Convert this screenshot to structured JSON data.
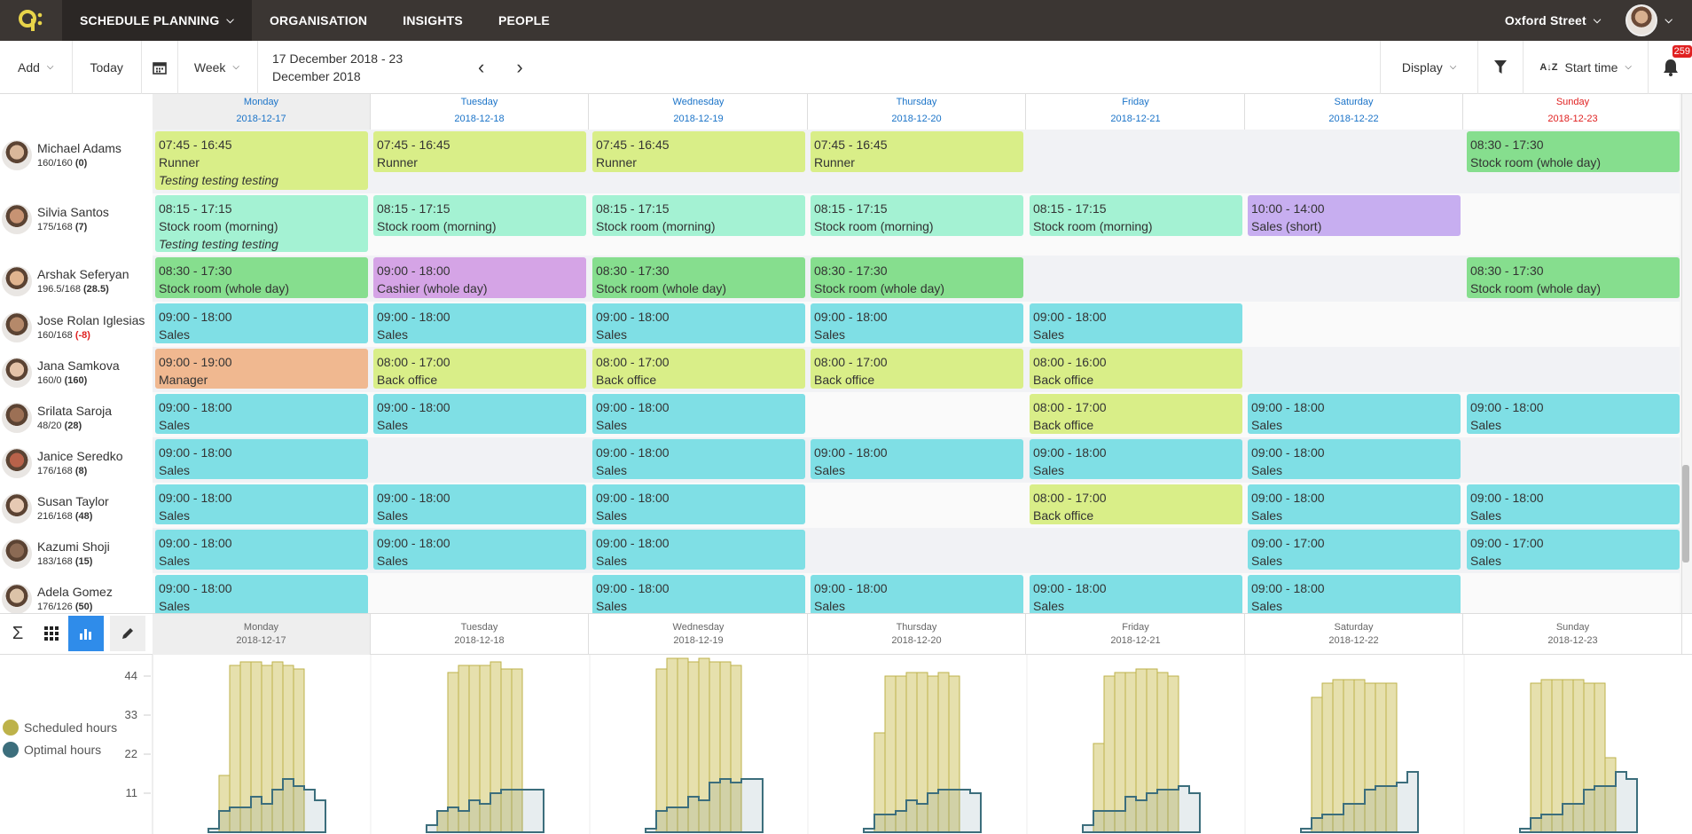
{
  "topnav": {
    "menu": "SCHEDULE PLANNING",
    "tabs": [
      "ORGANISATION",
      "INSIGHTS",
      "PEOPLE"
    ],
    "location": "Oxford Street"
  },
  "toolbar": {
    "add": "Add",
    "today": "Today",
    "view": "Week",
    "date_line1": "17 December 2018 - 23",
    "date_line2": "December 2018",
    "display": "Display",
    "sort": "Start time",
    "notifications": "259"
  },
  "days": [
    {
      "name": "Monday",
      "date": "2018-12-17"
    },
    {
      "name": "Tuesday",
      "date": "2018-12-18"
    },
    {
      "name": "Wednesday",
      "date": "2018-12-19"
    },
    {
      "name": "Thursday",
      "date": "2018-12-20"
    },
    {
      "name": "Friday",
      "date": "2018-12-21"
    },
    {
      "name": "Saturday",
      "date": "2018-12-22"
    },
    {
      "name": "Sunday",
      "date": "2018-12-23"
    }
  ],
  "colors": {
    "lime": "#d9ee88",
    "mint": "#a4f2d3",
    "green": "#86de8e",
    "cyan": "#7fdfe5",
    "violet": "#c7aef0",
    "pink": "#d5a4e6",
    "orange": "#f0b890",
    "accent": "#2f8cea",
    "scheduled": "#bdb24a",
    "optimal": "#3c6e7c"
  },
  "employees": [
    {
      "name": "Michael Adams",
      "hours": "160/160",
      "diff": "(0)",
      "neg": false,
      "shifts": [
        {
          "day": 0,
          "time": "07:45 - 16:45",
          "role": "Runner",
          "note": "Testing testing testing",
          "color": "lime"
        },
        {
          "day": 1,
          "time": "07:45 - 16:45",
          "role": "Runner",
          "color": "lime"
        },
        {
          "day": 2,
          "time": "07:45 - 16:45",
          "role": "Runner",
          "color": "lime"
        },
        {
          "day": 3,
          "time": "07:45 - 16:45",
          "role": "Runner",
          "color": "lime"
        },
        {
          "day": 6,
          "time": "08:30 - 17:30",
          "role": "Stock room (whole day)",
          "color": "green"
        }
      ]
    },
    {
      "name": "Silvia Santos",
      "hours": "175/168",
      "diff": "(7)",
      "neg": false,
      "shifts": [
        {
          "day": 0,
          "time": "08:15 - 17:15",
          "role": "Stock room (morning)",
          "note": "Testing testing testing",
          "color": "mint"
        },
        {
          "day": 1,
          "time": "08:15 - 17:15",
          "role": "Stock room (morning)",
          "color": "mint"
        },
        {
          "day": 2,
          "time": "08:15 - 17:15",
          "role": "Stock room (morning)",
          "color": "mint"
        },
        {
          "day": 3,
          "time": "08:15 - 17:15",
          "role": "Stock room (morning)",
          "color": "mint"
        },
        {
          "day": 4,
          "time": "08:15 - 17:15",
          "role": "Stock room (morning)",
          "color": "mint"
        },
        {
          "day": 5,
          "time": "10:00 - 14:00",
          "role": "Sales (short)",
          "color": "violet"
        }
      ]
    },
    {
      "name": "Arshak Seferyan",
      "hours": "196.5/168",
      "diff": "(28.5)",
      "neg": false,
      "shifts": [
        {
          "day": 0,
          "time": "08:30 - 17:30",
          "role": "Stock room (whole day)",
          "color": "green"
        },
        {
          "day": 1,
          "time": "09:00 - 18:00",
          "role": "Cashier (whole day)",
          "color": "pink"
        },
        {
          "day": 2,
          "time": "08:30 - 17:30",
          "role": "Stock room (whole day)",
          "color": "green"
        },
        {
          "day": 3,
          "time": "08:30 - 17:30",
          "role": "Stock room (whole day)",
          "color": "green"
        },
        {
          "day": 6,
          "time": "08:30 - 17:30",
          "role": "Stock room (whole day)",
          "color": "green"
        }
      ]
    },
    {
      "name": "Jose Rolan Iglesias",
      "hours": "160/168",
      "diff": "(-8)",
      "neg": true,
      "shifts": [
        {
          "day": 0,
          "time": "09:00 - 18:00",
          "role": "Sales",
          "color": "cyan"
        },
        {
          "day": 1,
          "time": "09:00 - 18:00",
          "role": "Sales",
          "color": "cyan"
        },
        {
          "day": 2,
          "time": "09:00 - 18:00",
          "role": "Sales",
          "color": "cyan"
        },
        {
          "day": 3,
          "time": "09:00 - 18:00",
          "role": "Sales",
          "color": "cyan"
        },
        {
          "day": 4,
          "time": "09:00 - 18:00",
          "role": "Sales",
          "color": "cyan"
        }
      ]
    },
    {
      "name": "Jana Samkova",
      "hours": "160/0",
      "diff": "(160)",
      "neg": false,
      "shifts": [
        {
          "day": 0,
          "time": "09:00 - 19:00",
          "role": "Manager",
          "color": "orange"
        },
        {
          "day": 1,
          "time": "08:00 - 17:00",
          "role": "Back office",
          "color": "lime"
        },
        {
          "day": 2,
          "time": "08:00 - 17:00",
          "role": "Back office",
          "color": "lime"
        },
        {
          "day": 3,
          "time": "08:00 - 17:00",
          "role": "Back office",
          "color": "lime"
        },
        {
          "day": 4,
          "time": "08:00 - 16:00",
          "role": "Back office",
          "color": "lime"
        }
      ]
    },
    {
      "name": "Srilata Saroja",
      "hours": "48/20",
      "diff": "(28)",
      "neg": false,
      "shifts": [
        {
          "day": 0,
          "time": "09:00 - 18:00",
          "role": "Sales",
          "color": "cyan"
        },
        {
          "day": 1,
          "time": "09:00 - 18:00",
          "role": "Sales",
          "color": "cyan"
        },
        {
          "day": 2,
          "time": "09:00 - 18:00",
          "role": "Sales",
          "color": "cyan"
        },
        {
          "day": 4,
          "time": "08:00 - 17:00",
          "role": "Back office",
          "color": "lime"
        },
        {
          "day": 5,
          "time": "09:00 - 18:00",
          "role": "Sales",
          "color": "cyan"
        },
        {
          "day": 6,
          "time": "09:00 - 18:00",
          "role": "Sales",
          "color": "cyan"
        }
      ]
    },
    {
      "name": "Janice Seredko",
      "hours": "176/168",
      "diff": "(8)",
      "neg": false,
      "shifts": [
        {
          "day": 0,
          "time": "09:00 - 18:00",
          "role": "Sales",
          "color": "cyan"
        },
        {
          "day": 2,
          "time": "09:00 - 18:00",
          "role": "Sales",
          "color": "cyan"
        },
        {
          "day": 3,
          "time": "09:00 - 18:00",
          "role": "Sales",
          "color": "cyan"
        },
        {
          "day": 4,
          "time": "09:00 - 18:00",
          "role": "Sales",
          "color": "cyan"
        },
        {
          "day": 5,
          "time": "09:00 - 18:00",
          "role": "Sales",
          "color": "cyan"
        }
      ]
    },
    {
      "name": "Susan Taylor",
      "hours": "216/168",
      "diff": "(48)",
      "neg": false,
      "shifts": [
        {
          "day": 0,
          "time": "09:00 - 18:00",
          "role": "Sales",
          "color": "cyan"
        },
        {
          "day": 1,
          "time": "09:00 - 18:00",
          "role": "Sales",
          "color": "cyan"
        },
        {
          "day": 2,
          "time": "09:00 - 18:00",
          "role": "Sales",
          "color": "cyan"
        },
        {
          "day": 4,
          "time": "08:00 - 17:00",
          "role": "Back office",
          "color": "lime"
        },
        {
          "day": 5,
          "time": "09:00 - 18:00",
          "role": "Sales",
          "color": "cyan"
        },
        {
          "day": 6,
          "time": "09:00 - 18:00",
          "role": "Sales",
          "color": "cyan"
        }
      ]
    },
    {
      "name": "Kazumi Shoji",
      "hours": "183/168",
      "diff": "(15)",
      "neg": false,
      "shifts": [
        {
          "day": 0,
          "time": "09:00 - 18:00",
          "role": "Sales",
          "color": "cyan"
        },
        {
          "day": 1,
          "time": "09:00 - 18:00",
          "role": "Sales",
          "color": "cyan"
        },
        {
          "day": 2,
          "time": "09:00 - 18:00",
          "role": "Sales",
          "color": "cyan"
        },
        {
          "day": 5,
          "time": "09:00 - 17:00",
          "role": "Sales",
          "color": "cyan"
        },
        {
          "day": 6,
          "time": "09:00 - 17:00",
          "role": "Sales",
          "color": "cyan"
        }
      ]
    },
    {
      "name": "Adela Gomez",
      "hours": "176/126",
      "diff": "(50)",
      "neg": false,
      "shifts": [
        {
          "day": 0,
          "time": "09:00 - 18:00",
          "role": "Sales",
          "color": "cyan"
        },
        {
          "day": 2,
          "time": "09:00 - 18:00",
          "role": "Sales",
          "color": "cyan"
        },
        {
          "day": 3,
          "time": "09:00 - 18:00",
          "role": "Sales",
          "color": "cyan"
        },
        {
          "day": 4,
          "time": "09:00 - 18:00",
          "role": "Sales",
          "color": "cyan"
        },
        {
          "day": 5,
          "time": "09:00 - 18:00",
          "role": "Sales",
          "color": "cyan"
        }
      ]
    }
  ],
  "chart_data": {
    "type": "bar",
    "y_ticks": [
      44,
      33,
      22,
      11
    ],
    "ylim": [
      0,
      50
    ],
    "series": [
      {
        "name": "Scheduled hours",
        "color": "#bdb24a",
        "per_day": [
          [
            16,
            47,
            48,
            48,
            47,
            48,
            47,
            46
          ],
          [
            6,
            45,
            47,
            47,
            47,
            48,
            46,
            46
          ],
          [
            46,
            49,
            49,
            48,
            49,
            48,
            48,
            47
          ],
          [
            28,
            44,
            44,
            45,
            45,
            44,
            45,
            44
          ],
          [
            25,
            44,
            45,
            45,
            46,
            46,
            45,
            44
          ],
          [
            38,
            42,
            43,
            43,
            43,
            42,
            42,
            42
          ],
          [
            42,
            43,
            43,
            43,
            43,
            42,
            42,
            21
          ]
        ]
      },
      {
        "name": "Optimal hours",
        "color": "#3c6e7c",
        "per_day": [
          [
            1,
            6,
            7,
            7,
            10,
            8,
            12,
            15,
            13,
            12,
            9
          ],
          [
            2,
            6,
            7,
            6,
            9,
            8,
            11,
            12,
            12,
            12,
            12
          ],
          [
            1,
            6,
            7,
            7,
            10,
            9,
            14,
            15,
            14,
            15,
            15
          ],
          [
            1,
            5,
            5,
            6,
            9,
            8,
            11,
            12,
            12,
            12,
            11
          ],
          [
            2,
            6,
            6,
            6,
            10,
            9,
            11,
            12,
            12,
            13,
            11
          ],
          [
            1,
            4,
            5,
            5,
            8,
            8,
            12,
            13,
            13,
            14,
            17
          ],
          [
            1,
            4,
            5,
            5,
            8,
            8,
            12,
            13,
            13,
            17,
            15
          ]
        ]
      }
    ]
  }
}
